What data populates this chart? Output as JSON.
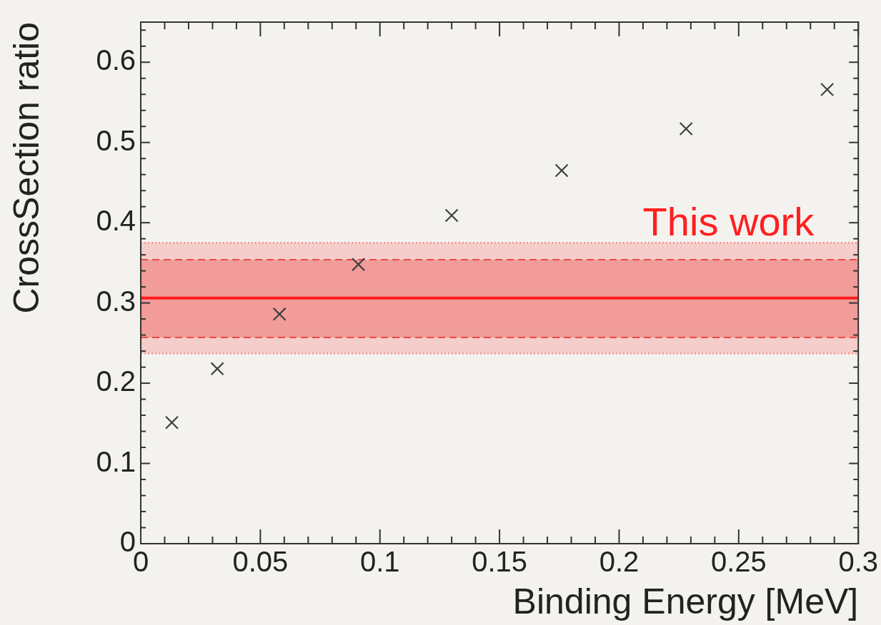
{
  "chart_data": {
    "type": "scatter",
    "xlabel": "Binding Energy [MeV]",
    "ylabel": "CrossSection ratio",
    "x": [
      0.013,
      0.032,
      0.058,
      0.091,
      0.13,
      0.176,
      0.228,
      0.287
    ],
    "series": [
      {
        "color": "#404040",
        "values": [
          0.151,
          0.218,
          0.286,
          0.348,
          0.409,
          0.465,
          0.517,
          0.566
        ]
      }
    ],
    "marker": "cross",
    "xlim": [
      0,
      0.3
    ],
    "xticks": [
      0,
      {
        "value": 0.01,
        "label": null
      },
      {
        "value": 0.02,
        "label": null
      },
      {
        "value": 0.03,
        "label": null
      },
      {
        "value": 0.04,
        "label": null
      },
      0.05,
      {
        "value": 0.06,
        "label": null
      },
      {
        "value": 0.07,
        "label": null
      },
      {
        "value": 0.08,
        "label": null
      },
      {
        "value": 0.09,
        "label": null
      },
      0.1,
      {
        "value": 0.11,
        "label": null
      },
      {
        "value": 0.12,
        "label": null
      },
      {
        "value": 0.13,
        "label": null
      },
      {
        "value": 0.14,
        "label": null
      },
      0.15,
      {
        "value": 0.16,
        "label": null
      },
      {
        "value": 0.17,
        "label": null
      },
      {
        "value": 0.18,
        "label": null
      },
      {
        "value": 0.19,
        "label": null
      },
      0.2,
      {
        "value": 0.21,
        "label": null
      },
      {
        "value": 0.22,
        "label": null
      },
      {
        "value": 0.23,
        "label": null
      },
      {
        "value": 0.24,
        "label": null
      },
      0.25,
      {
        "value": 0.26,
        "label": null
      },
      {
        "value": 0.27,
        "label": null
      },
      {
        "value": 0.28,
        "label": null
      },
      {
        "value": 0.29,
        "label": null
      },
      0.3
    ],
    "ylim": [
      0,
      0.65
    ],
    "yticks": [
      0,
      {
        "value": 0.02,
        "label": null
      },
      {
        "value": 0.04,
        "label": null
      },
      {
        "value": 0.06,
        "label": null
      },
      {
        "value": 0.08,
        "label": null
      },
      0.1,
      {
        "value": 0.12,
        "label": null
      },
      {
        "value": 0.14,
        "label": null
      },
      {
        "value": 0.16,
        "label": null
      },
      {
        "value": 0.18,
        "label": null
      },
      0.2,
      {
        "value": 0.22,
        "label": null
      },
      {
        "value": 0.24,
        "label": null
      },
      {
        "value": 0.26,
        "label": null
      },
      {
        "value": 0.28,
        "label": null
      },
      0.3,
      {
        "value": 0.32,
        "label": null
      },
      {
        "value": 0.34,
        "label": null
      },
      {
        "value": 0.36,
        "label": null
      },
      {
        "value": 0.38,
        "label": null
      },
      0.4,
      {
        "value": 0.42,
        "label": null
      },
      {
        "value": 0.44,
        "label": null
      },
      {
        "value": 0.46,
        "label": null
      },
      {
        "value": 0.48,
        "label": null
      },
      0.5,
      {
        "value": 0.52,
        "label": null
      },
      {
        "value": 0.54,
        "label": null
      },
      {
        "value": 0.56,
        "label": null
      },
      {
        "value": 0.58,
        "label": null
      },
      0.6,
      {
        "value": 0.62,
        "label": null
      },
      {
        "value": 0.64,
        "label": null
      }
    ],
    "bands": [
      {
        "axis": "y",
        "from": 0.237,
        "to": 0.375,
        "color": "#f5cdca"
      },
      {
        "axis": "y",
        "from": 0.257,
        "to": 0.354,
        "color": "#f29c99"
      }
    ],
    "ref_lines": [
      {
        "axis": "y",
        "value": 0.306,
        "label": "This work",
        "color": "#ff1f1f"
      },
      {
        "axis": "y",
        "value": 0.354,
        "color": "#ec4a48",
        "line_style": "dashed"
      },
      {
        "axis": "y",
        "value": 0.257,
        "color": "#ec4a48",
        "line_style": "dashed"
      },
      {
        "axis": "y",
        "value": 0.375,
        "color": "#f28380",
        "line_style": "dotted"
      },
      {
        "axis": "y",
        "value": 0.237,
        "color": "#f28380",
        "line_style": "dotted"
      }
    ]
  }
}
